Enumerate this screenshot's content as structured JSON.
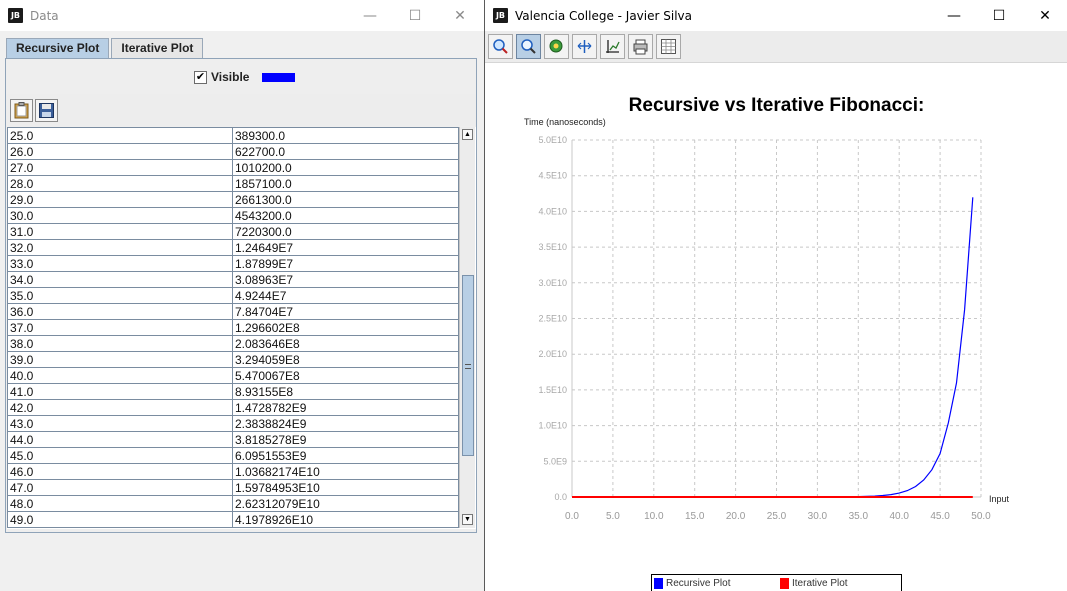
{
  "left_window": {
    "title": "Data",
    "controls": {
      "minimize": "—",
      "maximize": "☐",
      "close": "✕"
    },
    "tabs": [
      {
        "label": "Recursive Plot",
        "active": true
      },
      {
        "label": "Iterative Plot",
        "active": false
      }
    ],
    "visible_checkbox": {
      "label": "Visible",
      "checked": true,
      "mark": "✔",
      "swatch_color": "#0000ff"
    },
    "toolbar": [
      {
        "icon": "clipboard-icon"
      },
      {
        "icon": "save-disk-icon"
      }
    ],
    "table_rows": [
      [
        "25.0",
        "389300.0"
      ],
      [
        "26.0",
        "622700.0"
      ],
      [
        "27.0",
        "1010200.0"
      ],
      [
        "28.0",
        "1857100.0"
      ],
      [
        "29.0",
        "2661300.0"
      ],
      [
        "30.0",
        "4543200.0"
      ],
      [
        "31.0",
        "7220300.0"
      ],
      [
        "32.0",
        "1.24649E7"
      ],
      [
        "33.0",
        "1.87899E7"
      ],
      [
        "34.0",
        "3.08963E7"
      ],
      [
        "35.0",
        "4.9244E7"
      ],
      [
        "36.0",
        "7.84704E7"
      ],
      [
        "37.0",
        "1.296602E8"
      ],
      [
        "38.0",
        "2.083646E8"
      ],
      [
        "39.0",
        "3.294059E8"
      ],
      [
        "40.0",
        "5.470067E8"
      ],
      [
        "41.0",
        "8.93155E8"
      ],
      [
        "42.0",
        "1.4728782E9"
      ],
      [
        "43.0",
        "2.3838824E9"
      ],
      [
        "44.0",
        "3.8185278E9"
      ],
      [
        "45.0",
        "6.0951553E9"
      ],
      [
        "46.0",
        "1.03682174E10"
      ],
      [
        "47.0",
        "1.59784953E10"
      ],
      [
        "48.0",
        "2.62312079E10"
      ],
      [
        "49.0",
        "4.1978926E10"
      ]
    ],
    "scroll_fraction": 0.7
  },
  "right_window": {
    "title": "Valencia College - Javier Silva",
    "controls": {
      "minimize": "—",
      "maximize": "☐",
      "close": "✕"
    },
    "toolbar": [
      {
        "icon": "zoom-in-region-icon",
        "pressed": false
      },
      {
        "icon": "zoom-magnifier-icon",
        "pressed": true
      },
      {
        "icon": "pan-icon",
        "pressed": false
      },
      {
        "icon": "rescale-icon",
        "pressed": false
      },
      {
        "icon": "axis-settings-icon",
        "pressed": false
      },
      {
        "icon": "print-icon",
        "pressed": false
      },
      {
        "icon": "data-table-icon",
        "pressed": false
      }
    ]
  },
  "chart_data": {
    "type": "line",
    "title": "Recursive vs Iterative Fibonacci:",
    "ylabel": "Time (nanoseconds)",
    "xlabel": "Input",
    "xlim": [
      0,
      50
    ],
    "ylim": [
      0,
      50000000000
    ],
    "x_ticks": [
      "0.0",
      "5.0",
      "10.0",
      "15.0",
      "20.0",
      "25.0",
      "30.0",
      "35.0",
      "40.0",
      "45.0",
      "50.0"
    ],
    "y_ticks": [
      "0.0",
      "5.0E9",
      "1.0E10",
      "1.5E10",
      "2.0E10",
      "2.5E10",
      "3.0E10",
      "3.5E10",
      "4.0E10",
      "4.5E10",
      "5.0E10"
    ],
    "grid": true,
    "legend_position": "bottom",
    "series": [
      {
        "name": "Recursive Plot",
        "color": "#0000ff",
        "x": [
          0,
          5,
          10,
          15,
          20,
          25,
          26,
          27,
          28,
          29,
          30,
          31,
          32,
          33,
          34,
          35,
          36,
          37,
          38,
          39,
          40,
          41,
          42,
          43,
          44,
          45,
          46,
          47,
          48,
          49
        ],
        "y": [
          0,
          0,
          0,
          0,
          0,
          389300,
          622700,
          1010200,
          1857100,
          2661300,
          4543200,
          7220300,
          12464900,
          18789900,
          30896300,
          49244000,
          78470400,
          129660200,
          208364600,
          329405900,
          547006700,
          893155000,
          1472878200,
          2383882400,
          3818527800,
          6095155300,
          10368217400,
          15978495300,
          26231207900,
          41978926000
        ]
      },
      {
        "name": "Iterative Plot",
        "color": "#ff0000",
        "x": [
          0,
          49
        ],
        "y": [
          0,
          0
        ]
      }
    ]
  }
}
